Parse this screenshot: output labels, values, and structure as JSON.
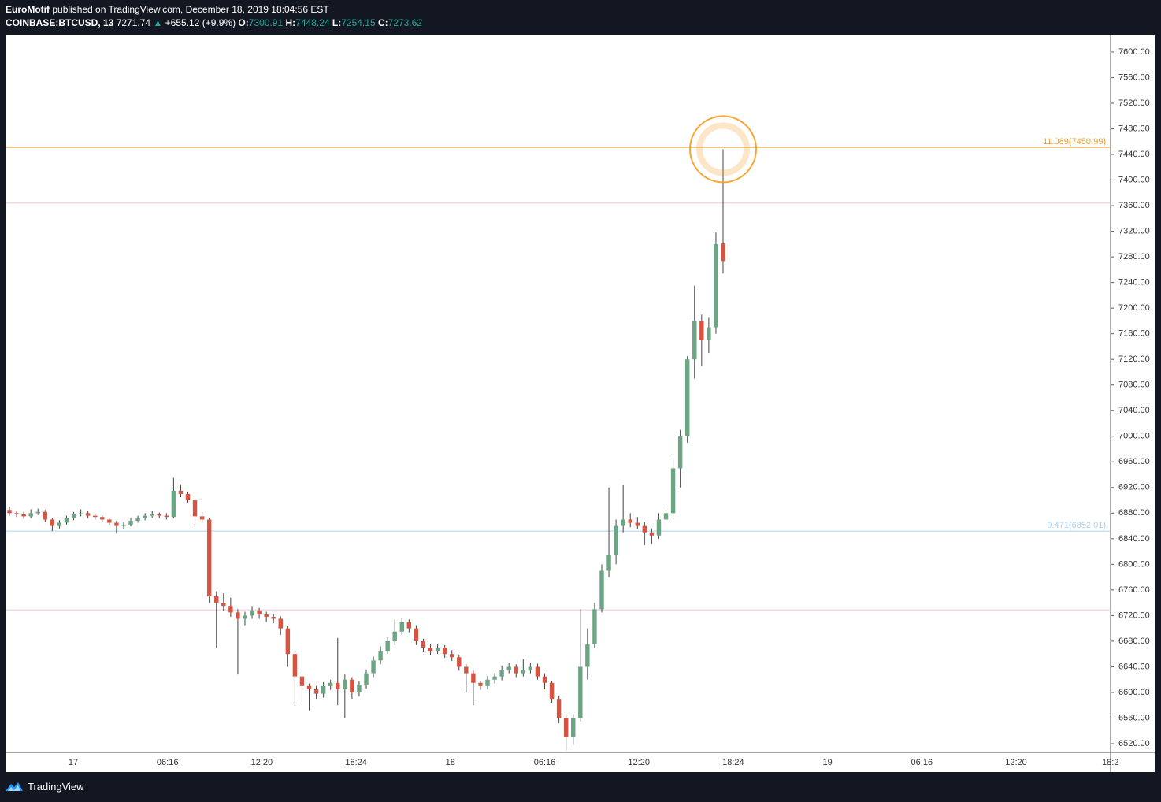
{
  "header": {
    "author": "EuroMotif",
    "published": "published on TradingView.com, December 18, 2019 18:04:56 EST",
    "symbol": "COINBASE:BTCUSD, 13",
    "last": "7271.74",
    "arrow": "▲",
    "change": "+655.12 (+9.9%)",
    "o_label": "O:",
    "o": "7300.91",
    "h_label": "H:",
    "h": "7448.24",
    "l_label": "L:",
    "l": "7254.15",
    "c_label": "C:",
    "c": "7273.62"
  },
  "footer": {
    "brand": "TradingView"
  },
  "chart_data": {
    "type": "candlestick",
    "up_color": "#6ba583",
    "down_color": "#d75442",
    "ylim": [
      6506.5,
      7627
    ],
    "yticks": [
      {
        "value": 6520,
        "label": "6520.00"
      },
      {
        "value": 6560,
        "label": "6560.00"
      },
      {
        "value": 6600,
        "label": "6600.00"
      },
      {
        "value": 6640,
        "label": "6640.00"
      },
      {
        "value": 6680,
        "label": "6680.00"
      },
      {
        "value": 6720,
        "label": "6720.00"
      },
      {
        "value": 6760,
        "label": "6760.00"
      },
      {
        "value": 6800,
        "label": "6800.00"
      },
      {
        "value": 6840,
        "label": "6840.00"
      },
      {
        "value": 6880,
        "label": "6880.00"
      },
      {
        "value": 6920,
        "label": "6920.00"
      },
      {
        "value": 6960,
        "label": "6960.00"
      },
      {
        "value": 7000,
        "label": "7000.00"
      },
      {
        "value": 7040,
        "label": "7040.00"
      },
      {
        "value": 7080,
        "label": "7080.00"
      },
      {
        "value": 7120,
        "label": "7120.00"
      },
      {
        "value": 7160,
        "label": "7160.00"
      },
      {
        "value": 7200,
        "label": "7200.00"
      },
      {
        "value": 7240,
        "label": "7240.00"
      },
      {
        "value": 7280,
        "label": "7280.00"
      },
      {
        "value": 7320,
        "label": "7320.00"
      },
      {
        "value": 7360,
        "label": "7360.00"
      },
      {
        "value": 7400,
        "label": "7400.00"
      },
      {
        "value": 7440,
        "label": "7440.00"
      },
      {
        "value": 7480,
        "label": "7480.00"
      },
      {
        "value": 7520,
        "label": "7520.00"
      },
      {
        "value": 7560,
        "label": "7560.00"
      },
      {
        "value": 7600,
        "label": "7600.00"
      }
    ],
    "xtick_labels": [
      "17",
      "06:16",
      "12:20",
      "18:24",
      "18",
      "06:16",
      "12:20",
      "18:24",
      "19",
      "06:16",
      "12:20",
      "18:2"
    ],
    "levels": [
      {
        "value": 7450.99,
        "label": "11.089(7450.99)",
        "color": "#f59d20"
      },
      {
        "value": 6852.01,
        "label": "9.471(6852.01)",
        "color": "#a9d3f0"
      },
      {
        "value": 7364,
        "color": "#f0c4cf"
      },
      {
        "value": 6729,
        "color": "#f0c4cf"
      }
    ],
    "candles": [
      [
        6885,
        6889,
        6876,
        6880
      ],
      [
        6880,
        6884,
        6874,
        6878
      ],
      [
        6878,
        6882,
        6871,
        6875
      ],
      [
        6875,
        6886,
        6872,
        6880
      ],
      [
        6880,
        6887,
        6877,
        6882
      ],
      [
        6882,
        6885,
        6866,
        6870
      ],
      [
        6870,
        6873,
        6852,
        6860
      ],
      [
        6860,
        6869,
        6856,
        6865
      ],
      [
        6865,
        6876,
        6862,
        6872
      ],
      [
        6872,
        6882,
        6869,
        6878
      ],
      [
        6878,
        6886,
        6875,
        6880
      ],
      [
        6880,
        6883,
        6872,
        6876
      ],
      [
        6876,
        6879,
        6870,
        6874
      ],
      [
        6874,
        6877,
        6866,
        6870
      ],
      [
        6870,
        6873,
        6861,
        6865
      ],
      [
        6865,
        6868,
        6848,
        6860
      ],
      [
        6860,
        6866,
        6856,
        6862
      ],
      [
        6862,
        6872,
        6859,
        6868
      ],
      [
        6868,
        6876,
        6865,
        6872
      ],
      [
        6872,
        6880,
        6869,
        6876
      ],
      [
        6876,
        6883,
        6873,
        6878
      ],
      [
        6878,
        6881,
        6872,
        6876
      ],
      [
        6876,
        6880,
        6870,
        6874
      ],
      [
        6874,
        6935,
        6872,
        6915
      ],
      [
        6915,
        6925,
        6905,
        6910
      ],
      [
        6910,
        6914,
        6895,
        6900
      ],
      [
        6900,
        6904,
        6862,
        6875
      ],
      [
        6875,
        6882,
        6865,
        6870
      ],
      [
        6870,
        6873,
        6740,
        6750
      ],
      [
        6750,
        6758,
        6670,
        6740
      ],
      [
        6740,
        6755,
        6728,
        6735
      ],
      [
        6735,
        6748,
        6718,
        6725
      ],
      [
        6725,
        6730,
        6628,
        6715
      ],
      [
        6715,
        6726,
        6705,
        6720
      ],
      [
        6720,
        6735,
        6715,
        6728
      ],
      [
        6728,
        6732,
        6715,
        6722
      ],
      [
        6722,
        6726,
        6710,
        6718
      ],
      [
        6718,
        6722,
        6708,
        6715
      ],
      [
        6715,
        6719,
        6690,
        6700
      ],
      [
        6700,
        6704,
        6640,
        6660
      ],
      [
        6660,
        6664,
        6580,
        6625
      ],
      [
        6625,
        6630,
        6585,
        6610
      ],
      [
        6610,
        6614,
        6572,
        6605
      ],
      [
        6605,
        6610,
        6590,
        6598
      ],
      [
        6598,
        6616,
        6592,
        6610
      ],
      [
        6610,
        6620,
        6604,
        6615
      ],
      [
        6615,
        6685,
        6580,
        6605
      ],
      [
        6605,
        6628,
        6560,
        6620
      ],
      [
        6620,
        6624,
        6590,
        6600
      ],
      [
        6600,
        6618,
        6594,
        6612
      ],
      [
        6612,
        6636,
        6606,
        6630
      ],
      [
        6630,
        6656,
        6624,
        6650
      ],
      [
        6650,
        6672,
        6644,
        6665
      ],
      [
        6665,
        6686,
        6660,
        6680
      ],
      [
        6680,
        6714,
        6674,
        6695
      ],
      [
        6695,
        6716,
        6690,
        6710
      ],
      [
        6710,
        6714,
        6694,
        6700
      ],
      [
        6700,
        6705,
        6674,
        6680
      ],
      [
        6680,
        6684,
        6664,
        6670
      ],
      [
        6670,
        6676,
        6659,
        6665
      ],
      [
        6665,
        6676,
        6660,
        6670
      ],
      [
        6670,
        6674,
        6654,
        6660
      ],
      [
        6660,
        6666,
        6649,
        6655
      ],
      [
        6655,
        6659,
        6634,
        6640
      ],
      [
        6640,
        6644,
        6600,
        6630
      ],
      [
        6630,
        6634,
        6580,
        6615
      ],
      [
        6615,
        6618,
        6604,
        6610
      ],
      [
        6610,
        6626,
        6605,
        6620
      ],
      [
        6620,
        6630,
        6614,
        6625
      ],
      [
        6625,
        6642,
        6619,
        6635
      ],
      [
        6635,
        6646,
        6630,
        6640
      ],
      [
        6640,
        6644,
        6624,
        6630
      ],
      [
        6630,
        6652,
        6625,
        6635
      ],
      [
        6635,
        6646,
        6630,
        6640
      ],
      [
        6640,
        6645,
        6620,
        6625
      ],
      [
        6625,
        6630,
        6605,
        6615
      ],
      [
        6615,
        6618,
        6584,
        6590
      ],
      [
        6590,
        6594,
        6552,
        6560
      ],
      [
        6560,
        6564,
        6510,
        6530
      ],
      [
        6530,
        6566,
        6518,
        6560
      ],
      [
        6560,
        6730,
        6555,
        6640
      ],
      [
        6640,
        6700,
        6620,
        6675
      ],
      [
        6675,
        6740,
        6670,
        6730
      ],
      [
        6730,
        6800,
        6725,
        6790
      ],
      [
        6790,
        6920,
        6780,
        6815
      ],
      [
        6815,
        6870,
        6800,
        6860
      ],
      [
        6860,
        6924,
        6850,
        6870
      ],
      [
        6870,
        6880,
        6858,
        6865
      ],
      [
        6865,
        6874,
        6855,
        6860
      ],
      [
        6860,
        6866,
        6830,
        6850
      ],
      [
        6850,
        6856,
        6832,
        6845
      ],
      [
        6845,
        6880,
        6840,
        6870
      ],
      [
        6870,
        6890,
        6865,
        6880
      ],
      [
        6880,
        6965,
        6870,
        6950
      ],
      [
        6950,
        7010,
        6920,
        7000
      ],
      [
        7000,
        7125,
        6990,
        7120
      ],
      [
        7120,
        7235,
        7090,
        7180
      ],
      [
        7180,
        7190,
        7110,
        7150
      ],
      [
        7150,
        7185,
        7130,
        7170
      ],
      [
        7170,
        7318,
        7160,
        7300
      ],
      [
        7300.91,
        7448.24,
        7254.15,
        7273.62
      ]
    ]
  }
}
